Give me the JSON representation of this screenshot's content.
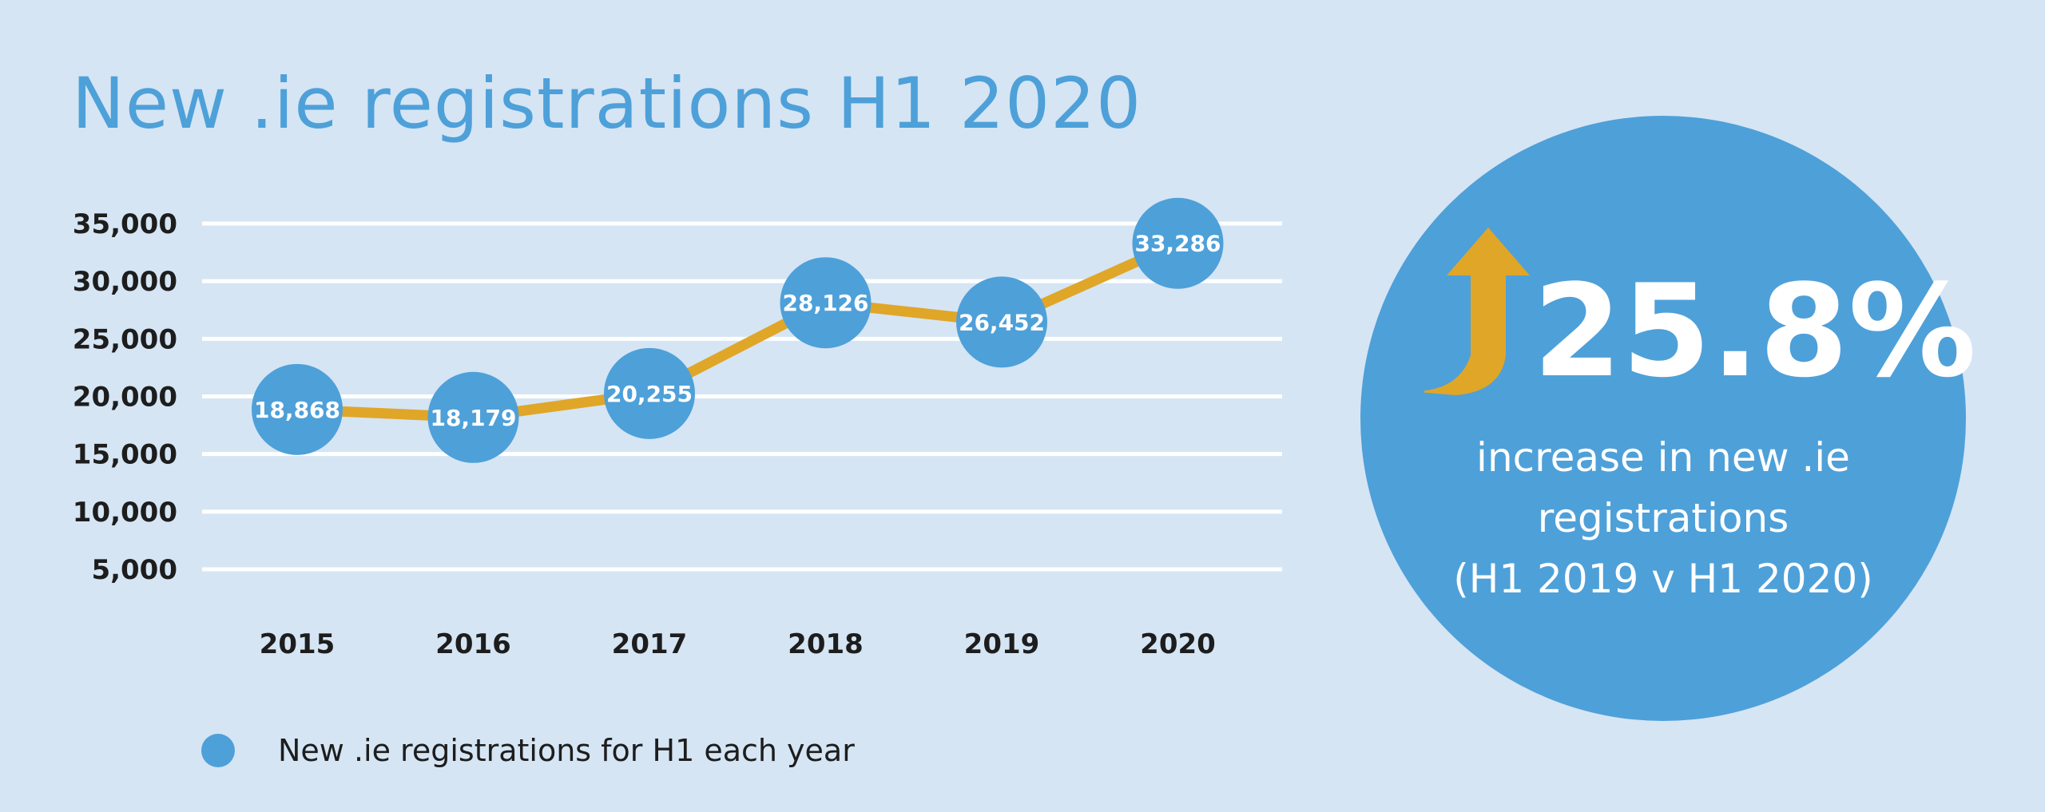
{
  "title": "New .ie registrations H1 2020",
  "chart_data": {
    "type": "line",
    "x": [
      "2015",
      "2016",
      "2017",
      "2018",
      "2019",
      "2020"
    ],
    "series": [
      {
        "name": "New .ie registrations for H1 each year",
        "values": [
          18868,
          18179,
          20255,
          28126,
          26452,
          33286
        ]
      }
    ],
    "data_labels": [
      "18,868",
      "18,179",
      "20,255",
      "28,126",
      "26,452",
      "33,286"
    ],
    "yticks": [
      5000,
      10000,
      15000,
      20000,
      25000,
      30000,
      35000
    ],
    "ytick_labels": [
      "5,000",
      "10,000",
      "15,000",
      "20,000",
      "25,000",
      "30,000",
      "35,000"
    ],
    "ylim": [
      5000,
      35000
    ],
    "grid": true,
    "legend_position": "bottom-left",
    "colors": {
      "line": "#e0a628",
      "marker": "#4ea0d9",
      "grid": "#ffffff"
    }
  },
  "callout": {
    "value": "25.8%",
    "line1": "increase in new .ie",
    "line2": "registrations",
    "line3": "(H1 2019 v H1 2020)",
    "arrow_icon": "up-arrow-icon",
    "arrow_color": "#e0a628"
  }
}
